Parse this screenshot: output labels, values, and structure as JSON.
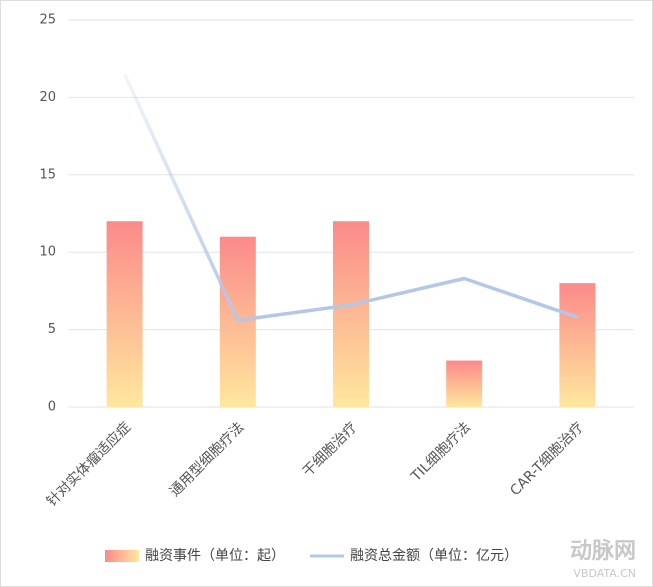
{
  "chart_data": {
    "type": "bar",
    "categories": [
      "针对实体瘤适应症",
      "通用型细胞疗法",
      "干细胞治疗",
      "TIL细胞疗法",
      "CAR-T细胞治疗"
    ],
    "series": [
      {
        "name": "融资事件（单位：起）",
        "type": "bar",
        "color": "#fb8a8a",
        "gradient": [
          "#fb8a8a",
          "#ffe79e"
        ],
        "values": [
          12,
          11,
          12,
          3,
          8
        ]
      },
      {
        "name": "融资总金额（单位：亿元）",
        "type": "line",
        "color": "#b4c7e7",
        "values": [
          21.5,
          5.6,
          6.6,
          8.3,
          5.8
        ]
      }
    ],
    "ylim": [
      0,
      25
    ],
    "yticks": [
      0,
      5,
      10,
      15,
      20,
      25
    ],
    "grid": true,
    "watermark": [
      "动脉网",
      "VBDATA.CN"
    ]
  }
}
